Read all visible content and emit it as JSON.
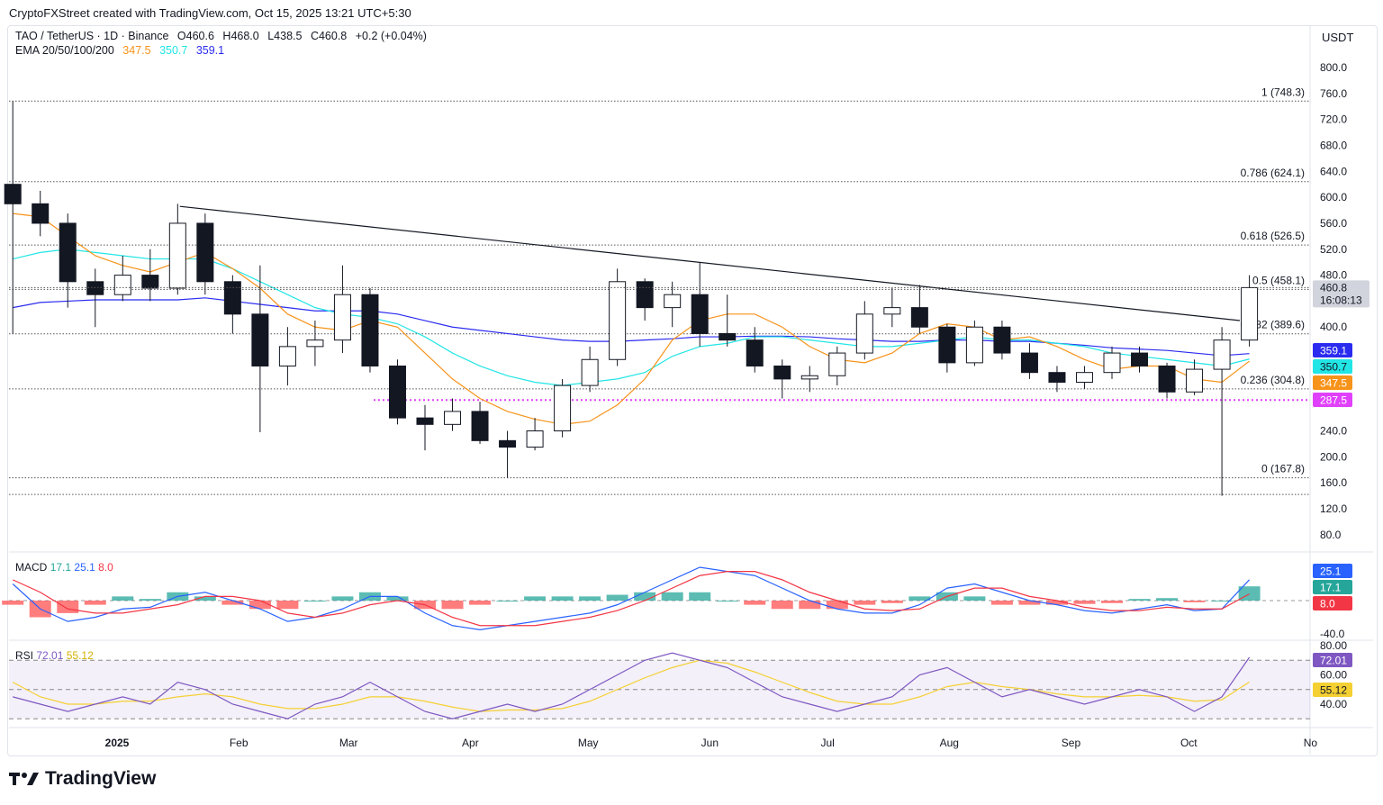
{
  "credit": "CryptoFXStreet created with TradingView.com, Oct 15, 2025 13:21 UTC+5:30",
  "legend": {
    "symbol": "TAO / TetherUS · 1D · Binance",
    "open": "O460.6",
    "high": "H468.0",
    "low": "L438.5",
    "close": "C460.8",
    "change": "+0.2 (+0.04%)",
    "ema_label": "EMA 20/50/100/200",
    "ema_values": [
      "347.5",
      "350.7",
      "359.1"
    ]
  },
  "currency": "USDT",
  "logo": "TradingView",
  "colors": {
    "ema_fast": "#f7931a",
    "ema_mid": "#22e5e5",
    "ema_slow": "#2b2bf0",
    "support": "#e040fb",
    "macd": "#2962ff",
    "signal": "#f23645",
    "hist_up": "#26a69a",
    "hist_down": "#ff5252",
    "rsi": "#7e57c2",
    "rsi_ma": "#f5d033"
  },
  "price_badges": {
    "last": "460.8",
    "countdown": "16:08:13",
    "ema_slow": "359.1",
    "ema_mid": "350.7",
    "ema_fast": "347.5",
    "support": "287.5"
  },
  "macd_legend": {
    "label": "MACD",
    "hist": "17.1",
    "macd": "25.1",
    "signal": "8.0"
  },
  "rsi_legend": {
    "label": "RSI",
    "rsi": "72.01",
    "ma": "55.12"
  },
  "chart_data": {
    "type": "candlestick",
    "ylim": [
      100,
      820
    ],
    "y_ticks": [
      "800.0",
      "760.0",
      "720.0",
      "680.0",
      "640.0",
      "600.0",
      "560.0",
      "520.0",
      "480.0",
      "400.0",
      "240.0",
      "200.0",
      "160.0",
      "120.0",
      "80.0"
    ],
    "x_ticks": [
      "2025",
      "Feb",
      "Mar",
      "Apr",
      "May",
      "Jun",
      "Jul",
      "Aug",
      "Sep",
      "Oct",
      "No"
    ],
    "fib_levels": [
      {
        "label": "1 (748.3)",
        "value": 748.3
      },
      {
        "label": "0.786 (624.1)",
        "value": 624.1
      },
      {
        "label": "0.618 (526.5)",
        "value": 526.5
      },
      {
        "label": "0.5 (458.1)",
        "value": 458.1
      },
      {
        "label": "0.382 (389.6)",
        "value": 389.6
      },
      {
        "label": "0.236 (304.8)",
        "value": 304.8
      },
      {
        "label": "0 (167.8)",
        "value": 167.8
      }
    ],
    "extra_level": 142,
    "support_level": 287.5,
    "trendline": [
      {
        "date": "2025-01-17",
        "value": 586
      },
      {
        "date": "2025-10-14",
        "value": 410
      }
    ],
    "dates": [
      "2024-12-02",
      "2024-12-09",
      "2024-12-16",
      "2024-12-23",
      "2024-12-30",
      "2025-01-06",
      "2025-01-13",
      "2025-01-20",
      "2025-01-27",
      "2025-02-03",
      "2025-02-10",
      "2025-02-17",
      "2025-02-24",
      "2025-03-03",
      "2025-03-10",
      "2025-03-17",
      "2025-03-24",
      "2025-03-31",
      "2025-04-07",
      "2025-04-14",
      "2025-04-21",
      "2025-04-28",
      "2025-05-05",
      "2025-05-12",
      "2025-05-19",
      "2025-05-26",
      "2025-06-02",
      "2025-06-09",
      "2025-06-16",
      "2025-06-23",
      "2025-06-30",
      "2025-07-07",
      "2025-07-14",
      "2025-07-21",
      "2025-07-28",
      "2025-08-04",
      "2025-08-11",
      "2025-08-18",
      "2025-08-25",
      "2025-09-01",
      "2025-09-08",
      "2025-09-15",
      "2025-09-22",
      "2025-09-29",
      "2025-10-06",
      "2025-10-13"
    ],
    "ohlc": [
      [
        620,
        748,
        390,
        590
      ],
      [
        590,
        610,
        540,
        560
      ],
      [
        560,
        575,
        430,
        470
      ],
      [
        470,
        490,
        400,
        450
      ],
      [
        450,
        510,
        440,
        480
      ],
      [
        480,
        520,
        440,
        460
      ],
      [
        460,
        590,
        450,
        560
      ],
      [
        560,
        575,
        450,
        470
      ],
      [
        470,
        480,
        390,
        420
      ],
      [
        420,
        495,
        238,
        340
      ],
      [
        340,
        400,
        310,
        370
      ],
      [
        370,
        410,
        340,
        380
      ],
      [
        380,
        495,
        360,
        450
      ],
      [
        450,
        460,
        330,
        340
      ],
      [
        340,
        350,
        250,
        260
      ],
      [
        260,
        280,
        210,
        250
      ],
      [
        250,
        290,
        240,
        270
      ],
      [
        270,
        285,
        220,
        225
      ],
      [
        225,
        240,
        168,
        215
      ],
      [
        215,
        260,
        210,
        240
      ],
      [
        240,
        320,
        230,
        310
      ],
      [
        310,
        370,
        300,
        350
      ],
      [
        350,
        490,
        340,
        470
      ],
      [
        470,
        475,
        410,
        430
      ],
      [
        430,
        470,
        400,
        450
      ],
      [
        450,
        500,
        370,
        390
      ],
      [
        390,
        450,
        370,
        380
      ],
      [
        380,
        400,
        330,
        340
      ],
      [
        340,
        350,
        290,
        320
      ],
      [
        320,
        340,
        300,
        325
      ],
      [
        325,
        370,
        310,
        360
      ],
      [
        360,
        440,
        350,
        420
      ],
      [
        420,
        460,
        400,
        430
      ],
      [
        430,
        465,
        390,
        400
      ],
      [
        400,
        405,
        330,
        345
      ],
      [
        345,
        410,
        340,
        400
      ],
      [
        400,
        410,
        350,
        360
      ],
      [
        360,
        375,
        320,
        330
      ],
      [
        330,
        340,
        300,
        315
      ],
      [
        315,
        340,
        305,
        330
      ],
      [
        330,
        370,
        320,
        360
      ],
      [
        360,
        370,
        330,
        340
      ],
      [
        340,
        345,
        290,
        300
      ],
      [
        300,
        350,
        295,
        335
      ],
      [
        335,
        400,
        140,
        380
      ],
      [
        380,
        480,
        370,
        460.8
      ]
    ],
    "ema_fast": [
      575,
      570,
      540,
      510,
      495,
      485,
      500,
      515,
      490,
      460,
      420,
      400,
      395,
      410,
      400,
      360,
      320,
      290,
      270,
      258,
      250,
      255,
      280,
      320,
      380,
      410,
      420,
      420,
      400,
      370,
      350,
      345,
      360,
      390,
      405,
      400,
      380,
      385,
      370,
      350,
      335,
      340,
      340,
      320,
      315,
      347.5
    ],
    "ema_mid": [
      505,
      515,
      520,
      515,
      510,
      505,
      505,
      505,
      490,
      470,
      450,
      430,
      420,
      415,
      405,
      385,
      360,
      340,
      325,
      315,
      310,
      315,
      320,
      330,
      355,
      370,
      375,
      385,
      385,
      380,
      375,
      370,
      370,
      375,
      380,
      385,
      380,
      380,
      375,
      370,
      360,
      355,
      350,
      345,
      340,
      350.7
    ],
    "ema_slow": [
      430,
      438,
      440,
      442,
      442,
      442,
      442,
      445,
      440,
      435,
      430,
      425,
      425,
      425,
      420,
      410,
      400,
      395,
      390,
      385,
      380,
      378,
      378,
      380,
      382,
      385,
      385,
      386,
      386,
      385,
      382,
      380,
      378,
      378,
      380,
      380,
      378,
      378,
      375,
      372,
      368,
      366,
      364,
      360,
      356,
      359.1
    ],
    "macd": {
      "ylim": [
        -45,
        45
      ],
      "ticks": [
        "-40.0"
      ],
      "macd": [
        20,
        -10,
        -25,
        -20,
        -10,
        -8,
        5,
        10,
        0,
        -10,
        -25,
        -20,
        -10,
        5,
        5,
        -15,
        -30,
        -35,
        -30,
        -25,
        -20,
        -15,
        -5,
        10,
        25,
        40,
        35,
        30,
        15,
        0,
        -10,
        -15,
        -15,
        -5,
        15,
        20,
        10,
        0,
        -5,
        -12,
        -15,
        -10,
        -5,
        -12,
        -10,
        25.1
      ],
      "signal": [
        25,
        10,
        -10,
        -15,
        -15,
        -10,
        -5,
        5,
        5,
        0,
        -15,
        -20,
        -15,
        -5,
        0,
        -5,
        -20,
        -30,
        -30,
        -30,
        -25,
        -20,
        -12,
        0,
        15,
        30,
        35,
        35,
        25,
        10,
        0,
        -10,
        -12,
        -10,
        5,
        15,
        15,
        5,
        0,
        -8,
        -12,
        -12,
        -8,
        -10,
        -10,
        8.0
      ]
    },
    "rsi": {
      "ylim": [
        20,
        85
      ],
      "ticks": [
        "80.00",
        "60.00",
        "40.00"
      ],
      "bands": [
        70,
        50,
        30
      ],
      "rsi": [
        45,
        40,
        35,
        40,
        45,
        40,
        55,
        50,
        40,
        35,
        30,
        40,
        45,
        55,
        45,
        35,
        30,
        35,
        40,
        35,
        40,
        50,
        60,
        70,
        75,
        70,
        65,
        55,
        45,
        40,
        35,
        40,
        45,
        60,
        65,
        55,
        45,
        50,
        45,
        40,
        45,
        50,
        45,
        35,
        45,
        72.01
      ],
      "ma": [
        55,
        45,
        40,
        40,
        42,
        42,
        45,
        47,
        45,
        40,
        37,
        37,
        40,
        45,
        45,
        42,
        38,
        35,
        36,
        36,
        37,
        42,
        50,
        58,
        65,
        70,
        68,
        62,
        55,
        48,
        42,
        40,
        40,
        45,
        52,
        55,
        52,
        50,
        47,
        45,
        45,
        46,
        45,
        42,
        43,
        55.12
      ]
    }
  }
}
